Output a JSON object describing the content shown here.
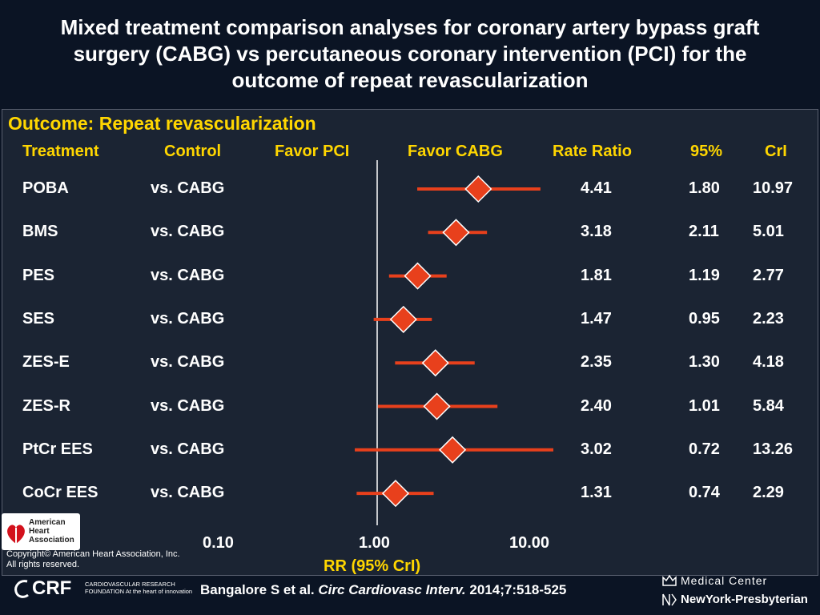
{
  "title_lines": [
    "Mixed treatment comparison analyses for coronary artery bypass graft",
    "surgery (CABG) vs percutaneous coronary intervention (PCI) for the",
    "outcome of repeat revascularization"
  ],
  "outcome_label": "Outcome: Repeat revascularization",
  "headers": {
    "treatment": "Treatment",
    "control": "Control",
    "favor_pci": "Favor PCI",
    "favor_cabg": "Favor CABG",
    "rate_ratio": "Rate Ratio",
    "ci_95": "95%",
    "crl": "CrI"
  },
  "colors": {
    "accent": "#ffd600",
    "marker": "#e8401c",
    "background": "#0b1424",
    "panel": "#1b2433"
  },
  "chart_data": {
    "type": "forest",
    "xlabel": "RR (95% CrI)",
    "xscale": "log",
    "xlim": [
      0.1,
      10
    ],
    "reference_line": 1,
    "tick_labels": [
      "0.10",
      "1.00",
      "10.00"
    ],
    "tick_values": [
      0.1,
      1,
      10
    ],
    "rows": [
      {
        "treatment": "POBA",
        "control": "vs. CABG",
        "rr": "4.41",
        "lo": "1.80",
        "hi": "10.97"
      },
      {
        "treatment": "BMS",
        "control": "vs. CABG",
        "rr": "3.18",
        "lo": "2.11",
        "hi": "5.01"
      },
      {
        "treatment": "PES",
        "control": "vs. CABG",
        "rr": "1.81",
        "lo": "1.19",
        "hi": "2.77"
      },
      {
        "treatment": "SES",
        "control": "vs. CABG",
        "rr": "1.47",
        "lo": "0.95",
        "hi": "2.23"
      },
      {
        "treatment": "ZES-E",
        "control": "vs. CABG",
        "rr": "2.35",
        "lo": "1.30",
        "hi": "4.18"
      },
      {
        "treatment": "ZES-R",
        "control": "vs. CABG",
        "rr": "2.40",
        "lo": "1.01",
        "hi": "5.84"
      },
      {
        "treatment": "PtCr EES",
        "control": "vs. CABG",
        "rr": "3.02",
        "lo": "0.72",
        "hi": "13.26"
      },
      {
        "treatment": "CoCr EES",
        "control": "vs. CABG",
        "rr": "1.31",
        "lo": "0.74",
        "hi": "2.29"
      }
    ]
  },
  "logos": {
    "aha": "American Heart Association",
    "aha_icon": "heart-torch-icon",
    "crf_name": "CRF",
    "crf_sub": "CARDIOVASCULAR RESEARCH FOUNDATION At the heart of innovation",
    "medical_center": "Medical Center",
    "nyp": "NewYork-Presbyterian"
  },
  "copyright": "Copyright© American Heart Association, Inc. All rights reserved.",
  "citation": {
    "authors": "Bangalore S et al.",
    "journal": "Circ Cardiovasc Interv.",
    "ref": "2014;7:518-525"
  }
}
